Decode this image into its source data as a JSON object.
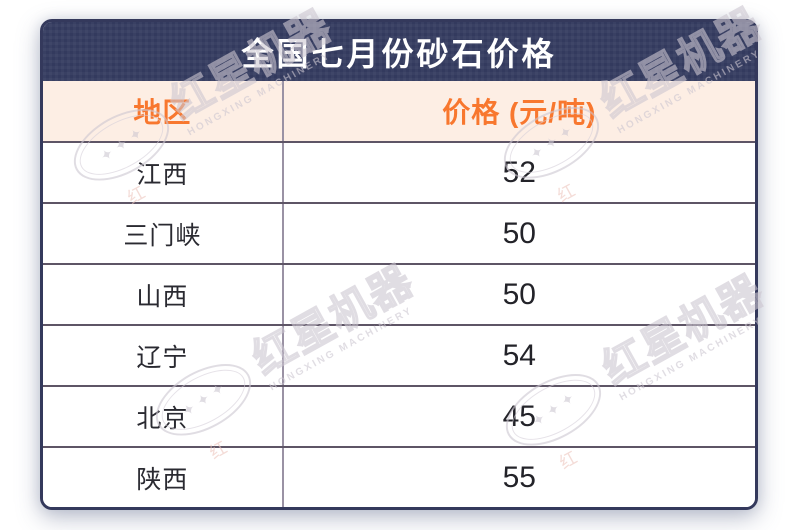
{
  "title": "全国七月份砂石价格",
  "table": {
    "columns": [
      {
        "label": "地区"
      },
      {
        "label": "价格 (元/吨)"
      }
    ],
    "rows": [
      {
        "region": "江西",
        "price": "52"
      },
      {
        "region": "三门峡",
        "price": "50"
      },
      {
        "region": "山西",
        "price": "50"
      },
      {
        "region": "辽宁",
        "price": "54"
      },
      {
        "region": "北京",
        "price": "45"
      },
      {
        "region": "陕西",
        "price": "55"
      }
    ]
  },
  "chart_data": {
    "type": "table",
    "title": "全国七月份砂石价格",
    "columns": [
      "地区",
      "价格 (元/吨)"
    ],
    "rows": [
      [
        "江西",
        52
      ],
      [
        "三门峡",
        50
      ],
      [
        "山西",
        50
      ],
      [
        "辽宁",
        54
      ],
      [
        "北京",
        45
      ],
      [
        "陕西",
        55
      ]
    ]
  },
  "watermark": {
    "brand_cn": "红星机器",
    "brand_en": "HONGXING MACHINERY",
    "stamp": "红",
    "stars": "✦✦✦"
  },
  "colors": {
    "navy": "#333a5e",
    "header_bg": "#fdeee4",
    "accent_orange": "#f8772e",
    "row_border": "#5e5566",
    "col_border": "#9a92a4",
    "text_dark": "#2a2a31",
    "watermark_gray": "#cdc7d1",
    "watermark_red": "#edc5bd"
  }
}
